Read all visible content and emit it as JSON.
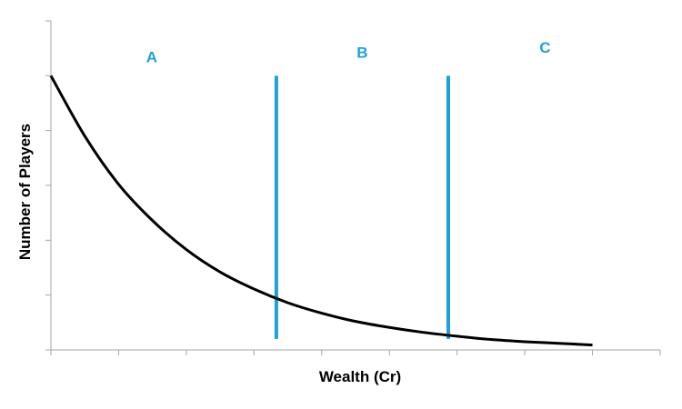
{
  "chart_data": {
    "type": "line",
    "title": "",
    "xlabel": "Wealth (Cr)",
    "ylabel": "Number of Players",
    "xlim": [
      0,
      9
    ],
    "ylim": [
      0,
      6
    ],
    "x_tick_count": 10,
    "y_tick_count": 7,
    "tick_labels_shown": false,
    "grid": false,
    "series": [
      {
        "color": "#000000",
        "x": [
          0,
          0.5,
          1,
          1.5,
          2,
          2.5,
          3,
          3.5,
          4,
          4.5,
          5,
          5.5,
          6,
          6.5,
          7,
          7.5,
          8
        ],
        "y": [
          5.0,
          3.9,
          3.02,
          2.36,
          1.83,
          1.42,
          1.11,
          0.86,
          0.67,
          0.52,
          0.41,
          0.32,
          0.25,
          0.19,
          0.15,
          0.12,
          0.09
        ]
      }
    ],
    "dividers": [
      {
        "x": 3.33,
        "y_range": [
          0.2,
          5.0
        ],
        "color": "#1ba1d9"
      },
      {
        "x": 5.87,
        "y_range": [
          0.2,
          5.0
        ],
        "color": "#1ba1d9"
      }
    ],
    "region_labels": [
      {
        "text": "A",
        "x": 1.49,
        "y": 5.25,
        "color": "#1ba1d9"
      },
      {
        "text": "B",
        "x": 4.6,
        "y": 5.33,
        "color": "#1ba1d9"
      },
      {
        "text": "C",
        "x": 7.3,
        "y": 5.42,
        "color": "#1ba1d9"
      }
    ]
  }
}
